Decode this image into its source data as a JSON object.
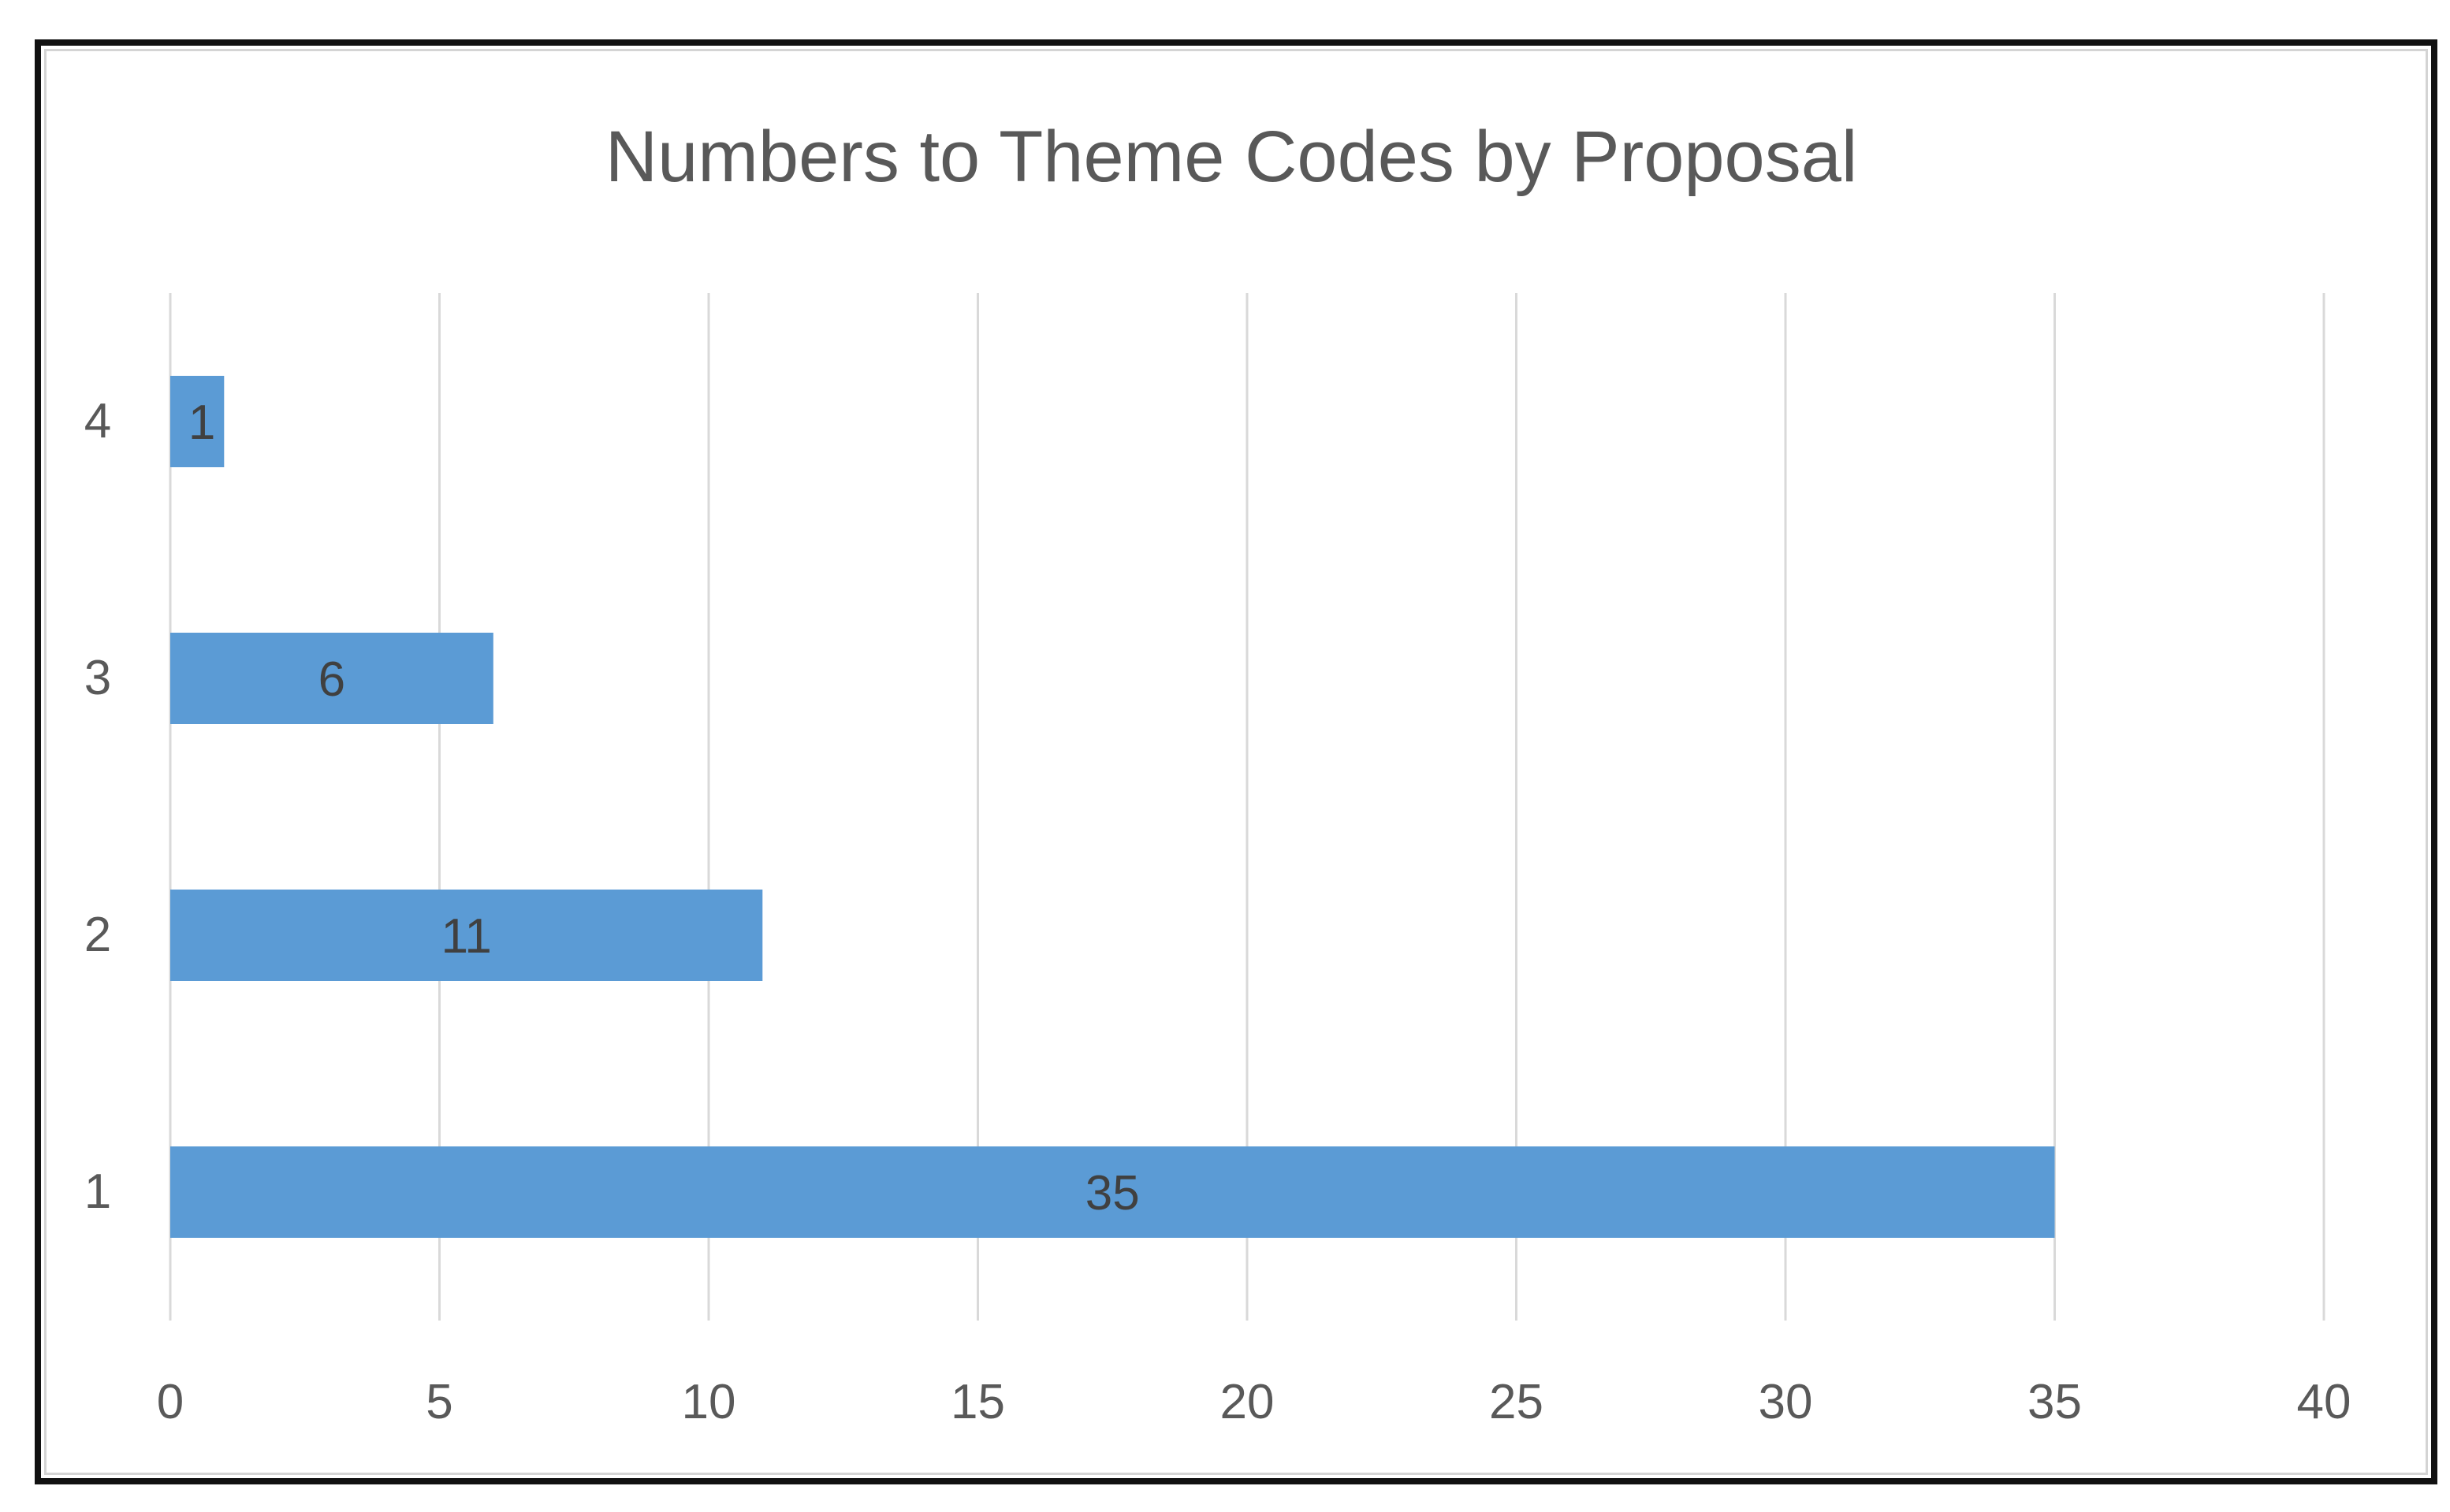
{
  "chart_data": {
    "type": "bar",
    "orientation": "horizontal",
    "title": "Numbers to Theme Codes by Proposal",
    "xlabel": "",
    "ylabel": "",
    "categories": [
      "1",
      "2",
      "3",
      "4"
    ],
    "values": [
      35,
      11,
      6,
      1
    ],
    "data_labels": [
      "35",
      "11",
      "6",
      "1"
    ],
    "xlim": [
      0,
      40
    ],
    "x_ticks": [
      0,
      5,
      10,
      15,
      20,
      25,
      30,
      35,
      40
    ],
    "x_tick_labels": [
      "0",
      "5",
      "10",
      "15",
      "20",
      "25",
      "30",
      "35",
      "40"
    ],
    "grid": "vertical",
    "legend": "none",
    "colors": {
      "bar": "#5b9bd5",
      "grid": "#d9d9d9",
      "text": "#595959",
      "data_label": "#404040",
      "frame": "#111111"
    }
  }
}
